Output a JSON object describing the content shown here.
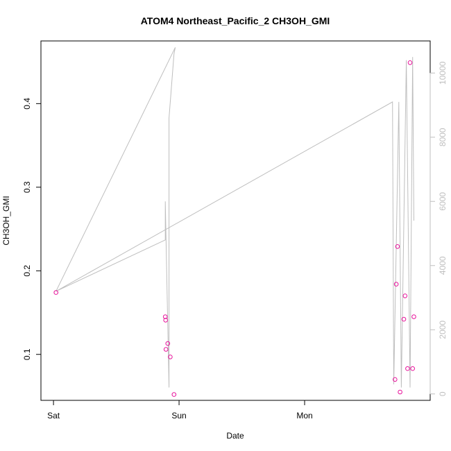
{
  "chart_data": {
    "type": "scatter",
    "title": "ATOM4 Northeast_Pacific_2 CH3OH_GMI",
    "xlabel": "Date",
    "ylabel": "CH3OH_GMI",
    "x_ticks": [
      {
        "label": "Sat",
        "value": 0
      },
      {
        "label": "Sun",
        "value": 1
      },
      {
        "label": "Mon",
        "value": 2
      }
    ],
    "x_units": "days",
    "xlim": [
      -0.1,
      3.0
    ],
    "ylim": [
      0.045,
      0.475
    ],
    "y_ticks": [
      0.1,
      0.2,
      0.3,
      0.4
    ],
    "y2lim": [
      -200,
      11000
    ],
    "y2_ticks": [
      0,
      2000,
      4000,
      6000,
      8000,
      10000
    ],
    "colors": {
      "points": "#e8129b",
      "line": "#bebebe",
      "axis": "#000000",
      "right_axis": "#bfbfbf"
    },
    "points": [
      {
        "x": 0.02,
        "y": 0.174
      },
      {
        "x": 0.89,
        "y": 0.145
      },
      {
        "x": 0.893,
        "y": 0.141
      },
      {
        "x": 0.896,
        "y": 0.106
      },
      {
        "x": 0.91,
        "y": 0.113
      },
      {
        "x": 0.93,
        "y": 0.097
      },
      {
        "x": 0.96,
        "y": 0.052
      },
      {
        "x": 2.72,
        "y": 0.07
      },
      {
        "x": 2.73,
        "y": 0.184
      },
      {
        "x": 2.74,
        "y": 0.229
      },
      {
        "x": 2.76,
        "y": 0.055
      },
      {
        "x": 2.79,
        "y": 0.142
      },
      {
        "x": 2.8,
        "y": 0.17
      },
      {
        "x": 2.82,
        "y": 0.083
      },
      {
        "x": 2.84,
        "y": 0.449
      },
      {
        "x": 2.86,
        "y": 0.083
      },
      {
        "x": 2.87,
        "y": 0.145
      }
    ],
    "line_series": {
      "axis": "right",
      "points": [
        {
          "x": 0.02,
          "y": 3200
        },
        {
          "x": 0.97,
          "y": 10800
        },
        {
          "x": 0.96,
          "y": 10600
        },
        {
          "x": 0.92,
          "y": 8600
        },
        {
          "x": 0.92,
          "y": 200
        },
        {
          "x": 0.89,
          "y": 6000
        },
        {
          "x": 0.89,
          "y": 4800
        },
        {
          "x": 0.02,
          "y": 3200
        },
        {
          "x": 2.7,
          "y": 9100
        },
        {
          "x": 2.71,
          "y": 300
        },
        {
          "x": 2.75,
          "y": 9100
        },
        {
          "x": 2.77,
          "y": 200
        },
        {
          "x": 2.81,
          "y": 10400
        },
        {
          "x": 2.84,
          "y": 200
        },
        {
          "x": 2.86,
          "y": 10500
        },
        {
          "x": 2.87,
          "y": 5400
        }
      ]
    },
    "grid": false,
    "legend": "none"
  }
}
